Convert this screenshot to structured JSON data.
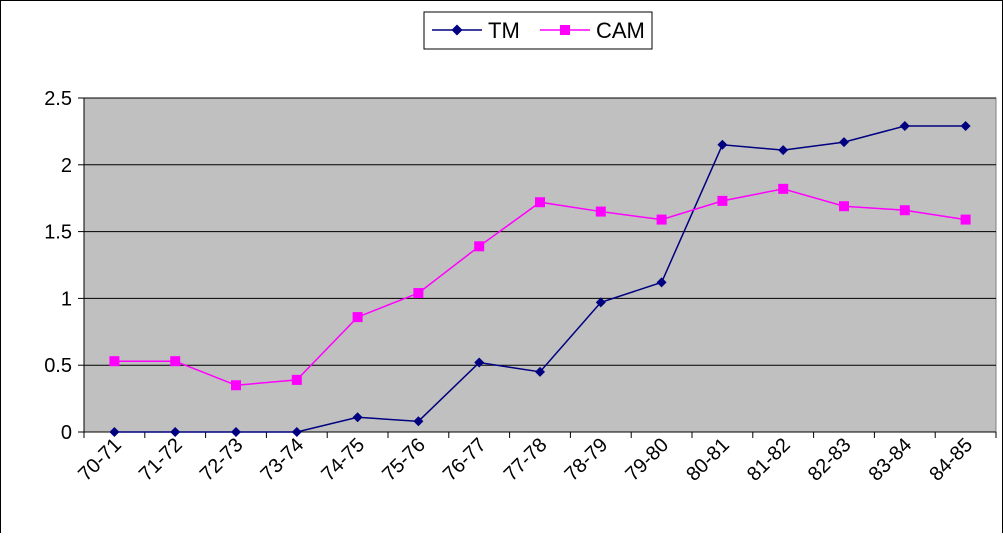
{
  "chart_data": {
    "type": "line",
    "title": "",
    "xlabel": "",
    "ylabel": "",
    "categories": [
      "70-71",
      "71-72",
      "72-73",
      "73-74",
      "74-75",
      "75-76",
      "76-77",
      "77-78",
      "78-79",
      "79-80",
      "80-81",
      "81-82",
      "82-83",
      "83-84",
      "84-85"
    ],
    "ylim": [
      0,
      2.5
    ],
    "yticks": [
      "0",
      "0.5",
      "1",
      "1.5",
      "2",
      "2.5"
    ],
    "grid": true,
    "legend_position": "top-center",
    "plot_background": "#c0c0c0",
    "series": [
      {
        "name": "TM",
        "color": "#000080",
        "marker": "diamond",
        "values": [
          0,
          0,
          0,
          0,
          0.11,
          0.08,
          0.52,
          0.45,
          0.97,
          1.12,
          2.15,
          2.11,
          2.17,
          2.29,
          2.29
        ]
      },
      {
        "name": "CAM",
        "color": "#ff00ff",
        "marker": "square",
        "values": [
          0.53,
          0.53,
          0.35,
          0.39,
          0.86,
          1.04,
          1.39,
          1.72,
          1.65,
          1.59,
          1.73,
          1.82,
          1.69,
          1.66,
          1.59
        ]
      }
    ]
  }
}
